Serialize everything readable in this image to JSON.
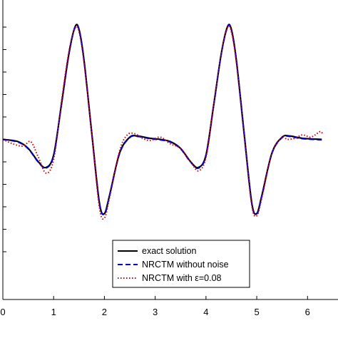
{
  "chart_data": {
    "type": "line",
    "title": "",
    "xlabel": "",
    "ylabel": "",
    "xlim": [
      0,
      6.6
    ],
    "ylim": [
      -5,
      5
    ],
    "x_ticks": [
      0,
      1,
      2,
      3,
      4,
      5,
      6
    ],
    "x_tick_labels": [
      "0",
      "1",
      "2",
      "3",
      "4",
      "5",
      "6"
    ],
    "y_ticks": [
      -5,
      -4,
      -3,
      -2,
      -1,
      0,
      1,
      2,
      3,
      4,
      5
    ],
    "y_tick_labels_visible": false,
    "grid": false,
    "legend_position": "bottom-center",
    "series": [
      {
        "name": "exact solution",
        "color": "#000000",
        "style": "solid",
        "points": [
          [
            0,
            0
          ],
          [
            0.3,
            -0.1
          ],
          [
            0.5,
            -0.4
          ],
          [
            0.7,
            -1.0
          ],
          [
            0.85,
            -1.25
          ],
          [
            1.0,
            -0.7
          ],
          [
            1.15,
            1.5
          ],
          [
            1.3,
            3.8
          ],
          [
            1.42,
            5.0
          ],
          [
            1.5,
            4.9
          ],
          [
            1.6,
            3.5
          ],
          [
            1.75,
            0.3
          ],
          [
            1.9,
            -2.8
          ],
          [
            2.0,
            -3.3
          ],
          [
            2.1,
            -2.5
          ],
          [
            2.3,
            -0.6
          ],
          [
            2.5,
            0.1
          ],
          [
            2.65,
            0.15
          ],
          [
            2.9,
            0.05
          ],
          [
            3.1,
            0.0
          ],
          [
            3.3,
            -0.1
          ],
          [
            3.5,
            -0.4
          ],
          [
            3.7,
            -1.0
          ],
          [
            3.85,
            -1.25
          ],
          [
            4.0,
            -0.7
          ],
          [
            4.15,
            1.5
          ],
          [
            4.3,
            3.8
          ],
          [
            4.42,
            5.0
          ],
          [
            4.5,
            4.9
          ],
          [
            4.6,
            3.5
          ],
          [
            4.75,
            0.3
          ],
          [
            4.9,
            -2.8
          ],
          [
            5.0,
            -3.3
          ],
          [
            5.1,
            -2.5
          ],
          [
            5.3,
            -0.6
          ],
          [
            5.5,
            0.1
          ],
          [
            5.65,
            0.15
          ],
          [
            5.9,
            0.05
          ],
          [
            6.28,
            0.0
          ]
        ]
      },
      {
        "name": "NRCTM without noise",
        "color": "#0000cc",
        "style": "dashed",
        "points": [
          [
            0,
            0
          ],
          [
            0.3,
            -0.12
          ],
          [
            0.5,
            -0.42
          ],
          [
            0.7,
            -1.02
          ],
          [
            0.85,
            -1.28
          ],
          [
            1.0,
            -0.72
          ],
          [
            1.15,
            1.48
          ],
          [
            1.3,
            3.78
          ],
          [
            1.42,
            4.98
          ],
          [
            1.5,
            4.88
          ],
          [
            1.6,
            3.48
          ],
          [
            1.75,
            0.28
          ],
          [
            1.9,
            -2.82
          ],
          [
            2.0,
            -3.32
          ],
          [
            2.1,
            -2.52
          ],
          [
            2.3,
            -0.62
          ],
          [
            2.5,
            0.08
          ],
          [
            2.65,
            0.13
          ],
          [
            2.9,
            0.03
          ],
          [
            3.1,
            -0.02
          ],
          [
            3.3,
            -0.12
          ],
          [
            3.5,
            -0.42
          ],
          [
            3.7,
            -1.02
          ],
          [
            3.85,
            -1.28
          ],
          [
            4.0,
            -0.72
          ],
          [
            4.15,
            1.48
          ],
          [
            4.3,
            3.78
          ],
          [
            4.42,
            4.98
          ],
          [
            4.5,
            4.88
          ],
          [
            4.6,
            3.48
          ],
          [
            4.75,
            0.28
          ],
          [
            4.9,
            -2.82
          ],
          [
            5.0,
            -3.32
          ],
          [
            5.1,
            -2.52
          ],
          [
            5.3,
            -0.62
          ],
          [
            5.5,
            0.08
          ],
          [
            5.65,
            0.13
          ],
          [
            5.9,
            0.03
          ],
          [
            6.28,
            -0.02
          ]
        ]
      },
      {
        "name": "NRCTM with ε=0.08",
        "color": "#cc0000",
        "style": "dotted",
        "points": [
          [
            0,
            0
          ],
          [
            0.2,
            -0.2
          ],
          [
            0.4,
            -0.3
          ],
          [
            0.55,
            -0.1
          ],
          [
            0.7,
            -0.8
          ],
          [
            0.85,
            -1.5
          ],
          [
            1.0,
            -0.9
          ],
          [
            1.15,
            1.6
          ],
          [
            1.3,
            3.9
          ],
          [
            1.42,
            4.95
          ],
          [
            1.5,
            4.8
          ],
          [
            1.6,
            3.4
          ],
          [
            1.75,
            0.3
          ],
          [
            1.9,
            -3.0
          ],
          [
            2.0,
            -3.5
          ],
          [
            2.1,
            -2.6
          ],
          [
            2.3,
            -0.5
          ],
          [
            2.45,
            0.2
          ],
          [
            2.6,
            0.25
          ],
          [
            2.75,
            0.05
          ],
          [
            2.9,
            -0.05
          ],
          [
            3.1,
            0.1
          ],
          [
            3.3,
            -0.2
          ],
          [
            3.5,
            -0.4
          ],
          [
            3.7,
            -1.0
          ],
          [
            3.85,
            -1.4
          ],
          [
            4.0,
            -0.8
          ],
          [
            4.15,
            1.5
          ],
          [
            4.3,
            3.8
          ],
          [
            4.42,
            4.95
          ],
          [
            4.5,
            4.8
          ],
          [
            4.6,
            3.4
          ],
          [
            4.75,
            0.2
          ],
          [
            4.9,
            -2.9
          ],
          [
            5.0,
            -3.4
          ],
          [
            5.1,
            -2.6
          ],
          [
            5.3,
            -0.6
          ],
          [
            5.5,
            0.1
          ],
          [
            5.6,
            0.0
          ],
          [
            5.75,
            0.05
          ],
          [
            5.9,
            0.2
          ],
          [
            6.05,
            0.1
          ],
          [
            6.15,
            0.2
          ],
          [
            6.25,
            0.35
          ],
          [
            6.3,
            0.25
          ]
        ]
      }
    ]
  },
  "legend": {
    "entries": [
      {
        "label": "exact solution",
        "color": "#000000",
        "dash": ""
      },
      {
        "label": "NRCTM without noise",
        "color": "#0000cc",
        "dash": "7,4"
      },
      {
        "label": "NRCTM with ε=0.08",
        "color": "#cc0000",
        "dash": "1.5,2.5"
      }
    ]
  }
}
